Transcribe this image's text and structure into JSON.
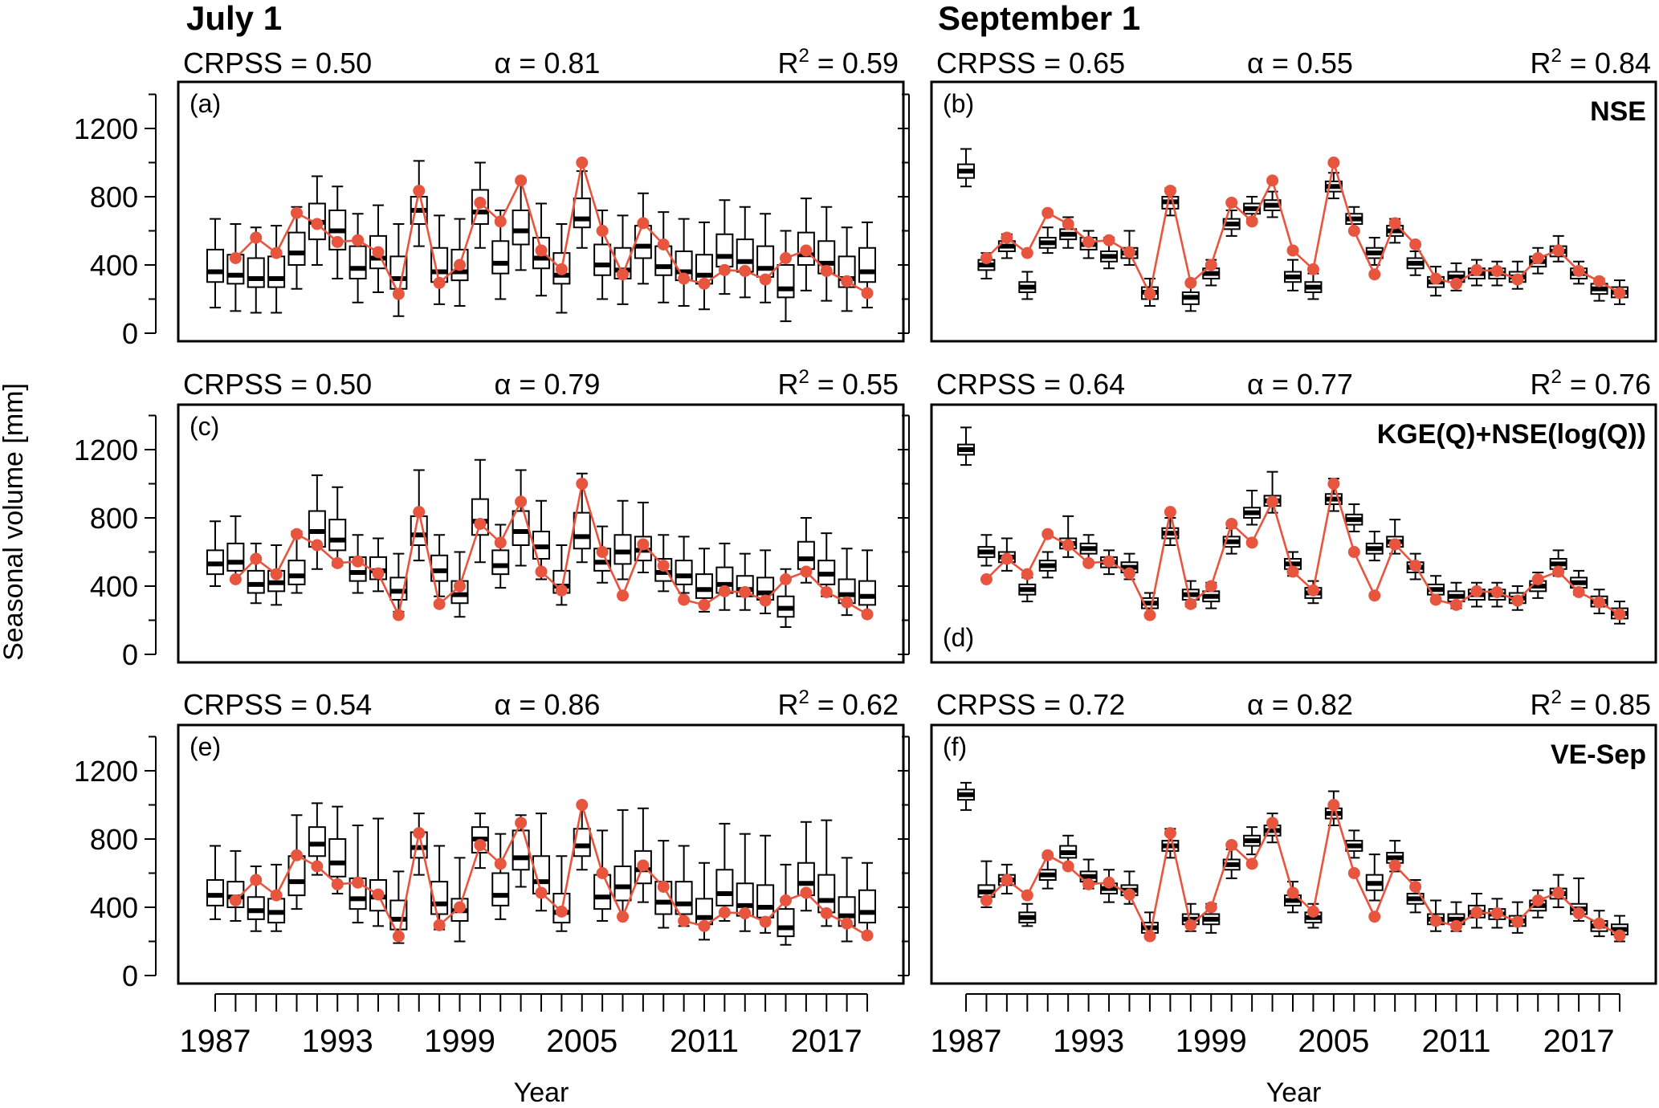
{
  "column_titles": [
    "July 1",
    "September 1"
  ],
  "y_axis_label": "Seasonal volume [mm]",
  "x_axis_label": "Year",
  "x_tick_labels": [
    "1987",
    "1993",
    "1999",
    "2005",
    "2011",
    "2017"
  ],
  "y_tick_labels": [
    "0",
    "400",
    "800",
    "1200"
  ],
  "row_titles": [
    "NSE",
    "KGE(Q)+NSE(log(Q))",
    "VE-Sep"
  ],
  "colors": {
    "observed": "#e8553f",
    "box": "#000000",
    "frame": "#000000"
  },
  "chart_data": {
    "type": "box",
    "years": [
      1987,
      1988,
      1989,
      1990,
      1991,
      1992,
      1993,
      1994,
      1995,
      1996,
      1997,
      1998,
      1999,
      2000,
      2001,
      2002,
      2003,
      2004,
      2005,
      2006,
      2007,
      2008,
      2009,
      2010,
      2011,
      2012,
      2013,
      2014,
      2015,
      2016,
      2017,
      2018,
      2019
    ],
    "ylim": [
      0,
      1400
    ],
    "observed": [
      null,
      440,
      560,
      470,
      705,
      640,
      535,
      545,
      475,
      230,
      835,
      295,
      400,
      765,
      655,
      895,
      485,
      375,
      1000,
      600,
      345,
      645,
      520,
      320,
      290,
      370,
      365,
      315,
      440,
      485,
      365,
      305,
      235
    ],
    "panels": [
      {
        "label": "(a)",
        "column": "July 1",
        "title": "",
        "stats": {
          "crpss": "CRPSS = 0.50",
          "alpha": "α = 0.81",
          "r2_prefix": "R",
          "r2_sup": "2",
          "r2_value": " = 0.59"
        },
        "median": [
          360,
          340,
          320,
          320,
          470,
          650,
          600,
          380,
          440,
          320,
          720,
          360,
          360,
          710,
          410,
          600,
          440,
          340,
          670,
          400,
          370,
          510,
          390,
          360,
          340,
          450,
          420,
          380,
          260,
          460,
          410,
          320,
          360
        ],
        "q1": [
          300,
          290,
          270,
          270,
          400,
          550,
          490,
          320,
          380,
          260,
          640,
          300,
          310,
          640,
          350,
          520,
          380,
          290,
          620,
          340,
          320,
          440,
          340,
          310,
          290,
          390,
          360,
          330,
          210,
          400,
          350,
          270,
          300
        ],
        "q3": [
          490,
          460,
          440,
          450,
          590,
          760,
          720,
          510,
          570,
          450,
          800,
          500,
          490,
          840,
          540,
          720,
          560,
          470,
          790,
          520,
          500,
          630,
          510,
          480,
          460,
          580,
          550,
          510,
          400,
          590,
          540,
          450,
          500
        ],
        "lo": [
          150,
          130,
          120,
          120,
          260,
          400,
          320,
          180,
          240,
          100,
          510,
          170,
          160,
          500,
          200,
          370,
          220,
          120,
          500,
          200,
          170,
          290,
          180,
          160,
          140,
          230,
          210,
          180,
          70,
          250,
          190,
          130,
          150
        ],
        "hi": [
          670,
          640,
          620,
          630,
          740,
          920,
          860,
          700,
          750,
          640,
          1010,
          690,
          670,
          1000,
          720,
          900,
          760,
          640,
          950,
          720,
          690,
          820,
          710,
          670,
          650,
          780,
          740,
          700,
          600,
          790,
          740,
          620,
          650
        ]
      },
      {
        "label": "(b)",
        "column": "September 1",
        "title": "NSE",
        "stats": {
          "crpss": "CRPSS = 0.65",
          "alpha": "α = 0.55",
          "r2_prefix": "R",
          "r2_sup": "2",
          "r2_value": " = 0.84"
        },
        "median": [
          950,
          400,
          510,
          270,
          530,
          580,
          520,
          450,
          470,
          240,
          770,
          210,
          350,
          640,
          730,
          750,
          330,
          270,
          860,
          670,
          470,
          600,
          410,
          300,
          330,
          350,
          350,
          330,
          420,
          480,
          350,
          260,
          240
        ],
        "q1": [
          910,
          370,
          480,
          240,
          500,
          550,
          490,
          420,
          440,
          200,
          730,
          170,
          320,
          610,
          700,
          720,
          300,
          240,
          830,
          640,
          440,
          570,
          380,
          270,
          300,
          320,
          320,
          300,
          390,
          450,
          320,
          230,
          210
        ],
        "q3": [
          990,
          430,
          540,
          300,
          560,
          610,
          560,
          480,
          500,
          270,
          800,
          240,
          380,
          670,
          760,
          780,
          360,
          300,
          890,
          700,
          500,
          630,
          440,
          330,
          360,
          380,
          380,
          360,
          450,
          510,
          380,
          290,
          270
        ],
        "lo": [
          860,
          320,
          440,
          200,
          470,
          500,
          440,
          380,
          400,
          160,
          690,
          130,
          280,
          570,
          670,
          680,
          250,
          200,
          790,
          600,
          400,
          530,
          340,
          220,
          250,
          280,
          280,
          260,
          350,
          420,
          290,
          190,
          170
        ],
        "hi": [
          1080,
          470,
          580,
          360,
          620,
          680,
          600,
          560,
          600,
          320,
          850,
          300,
          430,
          720,
          800,
          830,
          430,
          350,
          940,
          740,
          560,
          670,
          480,
          390,
          410,
          430,
          420,
          420,
          500,
          570,
          420,
          320,
          310
        ]
      },
      {
        "label": "(c)",
        "column": "July 1",
        "title": "",
        "stats": {
          "crpss": "CRPSS = 0.50",
          "alpha": "α = 0.79",
          "r2_prefix": "R",
          "r2_sup": "2",
          "r2_value": " = 0.55"
        },
        "median": [
          530,
          540,
          410,
          420,
          460,
          720,
          670,
          480,
          490,
          370,
          700,
          490,
          350,
          780,
          520,
          720,
          630,
          400,
          690,
          540,
          600,
          610,
          480,
          460,
          380,
          410,
          380,
          360,
          270,
          560,
          470,
          350,
          340
        ],
        "q1": [
          470,
          490,
          360,
          370,
          410,
          630,
          610,
          430,
          440,
          320,
          640,
          430,
          300,
          700,
          470,
          640,
          560,
          360,
          620,
          490,
          530,
          550,
          430,
          410,
          330,
          360,
          340,
          320,
          220,
          500,
          410,
          300,
          290
        ],
        "q3": [
          610,
          650,
          490,
          490,
          550,
          840,
          790,
          570,
          570,
          450,
          810,
          580,
          430,
          910,
          610,
          840,
          720,
          490,
          830,
          620,
          700,
          690,
          560,
          550,
          470,
          510,
          460,
          450,
          340,
          660,
          550,
          440,
          430
        ],
        "lo": [
          400,
          430,
          300,
          290,
          360,
          500,
          520,
          360,
          370,
          250,
          550,
          340,
          220,
          540,
          390,
          520,
          440,
          290,
          540,
          420,
          440,
          480,
          370,
          360,
          250,
          260,
          260,
          240,
          160,
          420,
          340,
          230,
          240
        ],
        "hi": [
          780,
          810,
          650,
          640,
          720,
          1050,
          980,
          700,
          680,
          590,
          1080,
          700,
          600,
          1140,
          760,
          1080,
          900,
          640,
          1060,
          750,
          900,
          890,
          700,
          690,
          620,
          650,
          590,
          610,
          500,
          800,
          710,
          620,
          610
        ]
      },
      {
        "label": "(d)",
        "column": "September 1",
        "title": "KGE(Q)+NSE(log(Q))",
        "stats": {
          "crpss": "CRPSS = 0.64",
          "alpha": "α = 0.77",
          "r2_prefix": "R",
          "r2_sup": "2",
          "r2_value": " = 0.76"
        },
        "median": [
          1200,
          600,
          570,
          380,
          520,
          650,
          620,
          540,
          510,
          300,
          710,
          350,
          340,
          660,
          830,
          900,
          530,
          360,
          910,
          790,
          620,
          660,
          510,
          380,
          340,
          350,
          350,
          330,
          400,
          530,
          420,
          310,
          240
        ],
        "q1": [
          1170,
          570,
          540,
          350,
          490,
          620,
          590,
          510,
          480,
          270,
          680,
          320,
          310,
          630,
          800,
          870,
          500,
          330,
          880,
          760,
          590,
          630,
          480,
          350,
          310,
          320,
          320,
          300,
          370,
          500,
          390,
          280,
          210
        ],
        "q3": [
          1230,
          630,
          600,
          410,
          550,
          680,
          650,
          570,
          540,
          330,
          740,
          380,
          370,
          690,
          860,
          930,
          560,
          390,
          940,
          820,
          650,
          690,
          540,
          410,
          370,
          380,
          380,
          360,
          430,
          560,
          450,
          340,
          270
        ],
        "lo": [
          1110,
          520,
          490,
          310,
          450,
          570,
          540,
          470,
          440,
          230,
          640,
          280,
          270,
          590,
          760,
          830,
          460,
          300,
          840,
          720,
          550,
          590,
          440,
          310,
          270,
          280,
          280,
          260,
          330,
          460,
          350,
          240,
          180
        ],
        "hi": [
          1330,
          700,
          680,
          450,
          600,
          810,
          700,
          610,
          590,
          360,
          800,
          430,
          420,
          740,
          960,
          1070,
          600,
          430,
          1030,
          880,
          720,
          790,
          590,
          460,
          420,
          420,
          420,
          400,
          480,
          610,
          490,
          380,
          310
        ]
      },
      {
        "label": "(e)",
        "column": "July 1",
        "title": "",
        "stats": {
          "crpss": "CRPSS = 0.54",
          "alpha": "α = 0.86",
          "r2_prefix": "R",
          "r2_sup": "2",
          "r2_value": " = 0.62"
        },
        "median": [
          470,
          460,
          380,
          370,
          550,
          770,
          660,
          450,
          460,
          330,
          750,
          420,
          380,
          800,
          470,
          690,
          550,
          370,
          760,
          460,
          520,
          620,
          430,
          420,
          340,
          480,
          410,
          400,
          280,
          540,
          440,
          350,
          370
        ],
        "q1": [
          410,
          400,
          330,
          310,
          470,
          700,
          580,
          390,
          380,
          270,
          690,
          360,
          320,
          720,
          410,
          620,
          480,
          310,
          700,
          390,
          440,
          540,
          360,
          360,
          300,
          410,
          350,
          340,
          230,
          470,
          370,
          290,
          310
        ],
        "q3": [
          560,
          550,
          460,
          450,
          700,
          870,
          800,
          570,
          560,
          440,
          840,
          550,
          450,
          870,
          600,
          850,
          700,
          480,
          860,
          590,
          640,
          730,
          550,
          550,
          450,
          620,
          540,
          530,
          390,
          660,
          590,
          460,
          500
        ],
        "lo": [
          330,
          320,
          260,
          260,
          390,
          590,
          480,
          310,
          290,
          190,
          590,
          270,
          200,
          630,
          330,
          520,
          380,
          260,
          620,
          320,
          350,
          430,
          280,
          290,
          210,
          320,
          260,
          250,
          180,
          380,
          290,
          200,
          240
        ],
        "hi": [
          760,
          730,
          640,
          650,
          940,
          1010,
          990,
          880,
          920,
          610,
          950,
          760,
          690,
          950,
          830,
          940,
          950,
          700,
          1000,
          850,
          970,
          980,
          790,
          760,
          660,
          890,
          830,
          820,
          650,
          900,
          910,
          690,
          660
        ]
      },
      {
        "label": "(f)",
        "column": "September 1",
        "title": "VE-Sep",
        "stats": {
          "crpss": "CRPSS = 0.72",
          "alpha": "α = 0.82",
          "r2_prefix": "R",
          "r2_sup": "2",
          "r2_value": " = 0.85"
        },
        "median": [
          1060,
          490,
          560,
          340,
          590,
          720,
          580,
          510,
          500,
          280,
          760,
          330,
          330,
          650,
          790,
          850,
          440,
          340,
          950,
          760,
          540,
          690,
          450,
          330,
          330,
          370,
          360,
          320,
          410,
          480,
          390,
          290,
          270
        ],
        "q1": [
          1030,
          460,
          530,
          310,
          560,
          690,
          550,
          480,
          470,
          250,
          730,
          300,
          300,
          620,
          760,
          820,
          410,
          310,
          920,
          730,
          500,
          660,
          420,
          300,
          300,
          340,
          330,
          290,
          380,
          450,
          360,
          260,
          240
        ],
        "q3": [
          1090,
          530,
          590,
          370,
          620,
          760,
          610,
          540,
          530,
          310,
          790,
          360,
          360,
          680,
          820,
          880,
          470,
          370,
          980,
          790,
          590,
          720,
          480,
          360,
          360,
          410,
          390,
          350,
          440,
          510,
          420,
          320,
          300
        ],
        "lo": [
          970,
          400,
          480,
          290,
          510,
          640,
          510,
          430,
          420,
          220,
          690,
          260,
          250,
          570,
          710,
          780,
          370,
          280,
          880,
          690,
          440,
          610,
          370,
          260,
          260,
          280,
          280,
          250,
          340,
          400,
          320,
          230,
          200
        ],
        "hi": [
          1130,
          670,
          650,
          420,
          690,
          820,
          680,
          620,
          610,
          370,
          860,
          420,
          420,
          740,
          870,
          950,
          550,
          420,
          1080,
          850,
          710,
          790,
          560,
          440,
          430,
          480,
          450,
          430,
          500,
          590,
          570,
          380,
          350
        ]
      }
    ]
  }
}
